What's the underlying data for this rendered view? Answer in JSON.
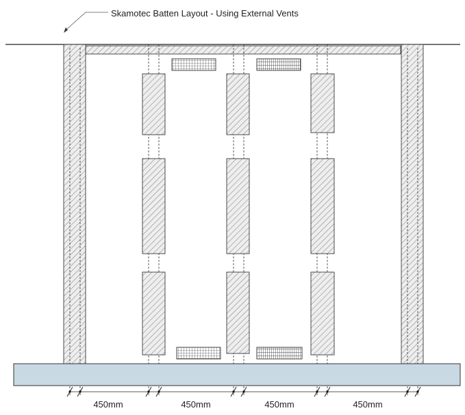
{
  "diagram": {
    "title": "Skamotec Batten Layout -  Using External Vents",
    "dimensions": [
      "450mm",
      "450mm",
      "450mm",
      "450mm"
    ],
    "colors": {
      "line": "#222222",
      "hatch": "#8a8a8a",
      "fill": "#eeeeee",
      "footing": "#c9d9e3",
      "vent": "#555555"
    }
  }
}
